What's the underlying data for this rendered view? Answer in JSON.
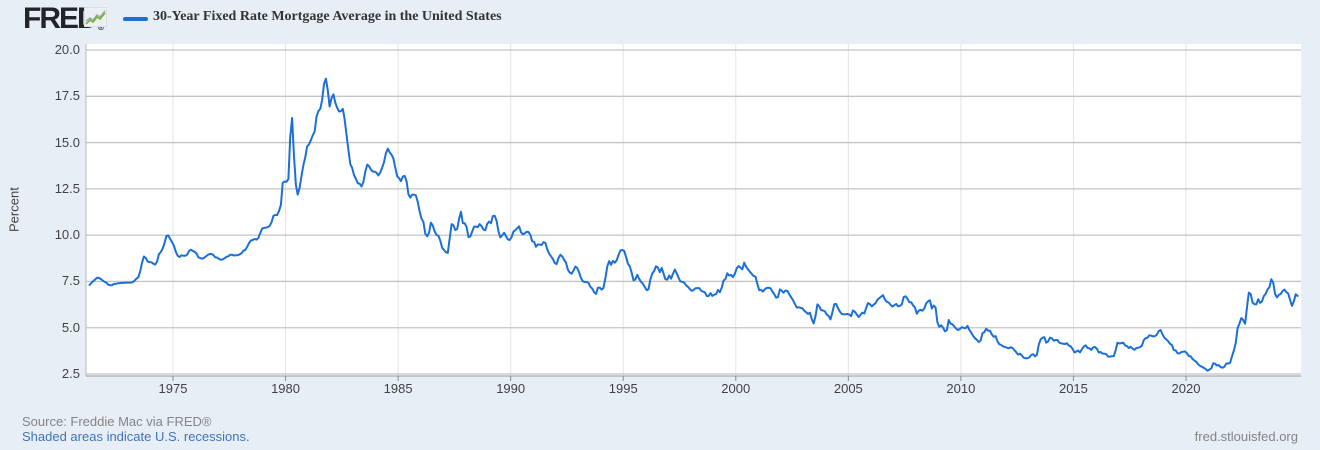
{
  "header": {
    "logo_text": "FRED",
    "logo_registered": "®",
    "series_title": "30-Year Fixed Rate Mortgage Average in the United States"
  },
  "footer": {
    "source": "Source: Freddie Mac via FRED®",
    "note": "Shaded areas indicate U.S. recessions.",
    "site": "fred.stlouisfed.org"
  },
  "colors": {
    "line": "#1b6fd8",
    "page_bg": "#e7eef6",
    "plot_bg": "#ffffff",
    "h_grid": "#c4c4c4",
    "v_grid": "#e4e4e4",
    "axis": "#aaaaaa",
    "tick_text": "#424242",
    "link": "#4273b8",
    "muted_text": "#848484",
    "logo_green": "#74b632"
  },
  "chart_data": {
    "type": "line",
    "title": "30-Year Fixed Rate Mortgage Average in the United States",
    "xlabel": "",
    "ylabel": "Percent",
    "ylim": [
      2.28,
      20.0
    ],
    "x_range_years": [
      1971.13,
      2025.1
    ],
    "grid": true,
    "legend_position": "top-left",
    "y_ticks": [
      2.5,
      5.0,
      7.5,
      10.0,
      12.5,
      15.0,
      17.5,
      20.0
    ],
    "y_tick_labels": [
      "2.5",
      "5.0",
      "7.5",
      "10.0",
      "12.5",
      "15.0",
      "17.5",
      "20.0"
    ],
    "x_ticks": [
      1975,
      1980,
      1985,
      1990,
      1995,
      2000,
      2005,
      2010,
      2015,
      2020
    ],
    "x_tick_labels": [
      "1975",
      "1980",
      "1985",
      "1990",
      "1995",
      "2000",
      "2005",
      "2010",
      "2015",
      "2020"
    ],
    "series": [
      {
        "name": "30-Year Fixed Rate Mortgage Average in the United States",
        "frequency": "monthly",
        "start_year": 1971,
        "start_month": 4,
        "values": [
          7.31,
          7.42,
          7.53,
          7.6,
          7.7,
          7.69,
          7.63,
          7.55,
          7.48,
          7.44,
          7.32,
          7.3,
          7.29,
          7.37,
          7.37,
          7.4,
          7.4,
          7.42,
          7.42,
          7.43,
          7.44,
          7.44,
          7.44,
          7.46,
          7.54,
          7.65,
          7.73,
          8.05,
          8.5,
          8.85,
          8.77,
          8.58,
          8.54,
          8.54,
          8.46,
          8.41,
          8.58,
          8.97,
          9.09,
          9.28,
          9.59,
          9.96,
          9.98,
          9.79,
          9.62,
          9.43,
          9.1,
          8.89,
          8.82,
          8.91,
          8.89,
          8.89,
          8.94,
          9.13,
          9.22,
          9.15,
          9.1,
          9.02,
          8.81,
          8.76,
          8.73,
          8.77,
          8.85,
          8.93,
          8.98,
          8.98,
          8.93,
          8.81,
          8.79,
          8.72,
          8.67,
          8.69,
          8.75,
          8.83,
          8.86,
          8.94,
          8.94,
          8.9,
          8.92,
          8.92,
          8.96,
          9.02,
          9.16,
          9.2,
          9.36,
          9.57,
          9.71,
          9.74,
          9.79,
          9.76,
          9.86,
          10.11,
          10.35,
          10.39,
          10.41,
          10.43,
          10.5,
          10.69,
          11.04,
          11.09,
          11.09,
          11.3,
          11.64,
          12.83,
          12.9,
          12.88,
          13.04,
          15.28,
          16.33,
          14.26,
          12.71,
          12.19,
          12.56,
          13.2,
          13.79,
          14.21,
          14.79,
          14.9,
          15.13,
          15.4,
          15.58,
          16.4,
          16.7,
          16.83,
          17.29,
          18.16,
          18.45,
          17.82,
          16.95,
          17.4,
          17.6,
          17.16,
          16.89,
          16.68,
          16.7,
          16.82,
          16.27,
          15.43,
          14.61,
          13.83,
          13.62,
          13.25,
          13.04,
          12.8,
          12.78,
          12.63,
          12.87,
          13.43,
          13.81,
          13.73,
          13.54,
          13.44,
          13.42,
          13.37,
          13.23,
          13.39,
          13.65,
          13.94,
          14.42,
          14.67,
          14.47,
          14.35,
          14.13,
          13.64,
          13.18,
          13.08,
          12.92,
          13.17,
          13.2,
          12.91,
          12.22,
          12.03,
          12.19,
          12.19,
          12.14,
          11.78,
          11.26,
          10.88,
          10.71,
          10.08,
          9.94,
          10.14,
          10.68,
          10.51,
          10.2,
          10.01,
          9.97,
          9.7,
          9.31,
          9.2,
          9.08,
          9.04,
          9.83,
          10.6,
          10.54,
          10.28,
          10.33,
          10.89,
          11.26,
          10.65,
          10.64,
          10.43,
          9.89,
          9.93,
          10.2,
          10.46,
          10.46,
          10.43,
          10.6,
          10.48,
          10.3,
          10.27,
          10.61,
          10.73,
          10.65,
          11.03,
          11.05,
          10.77,
          10.2,
          9.88,
          9.99,
          10.13,
          9.95,
          9.77,
          9.74,
          9.9,
          10.2,
          10.27,
          10.37,
          10.48,
          10.16,
          10.04,
          10.1,
          10.18,
          10.17,
          10.01,
          9.67,
          9.64,
          9.37,
          9.5,
          9.49,
          9.47,
          9.62,
          9.58,
          9.24,
          9.01,
          8.86,
          8.71,
          8.5,
          8.43,
          8.76,
          8.94,
          8.85,
          8.67,
          8.51,
          8.13,
          7.98,
          7.92,
          8.09,
          8.31,
          8.22,
          7.99,
          7.68,
          7.5,
          7.47,
          7.47,
          7.42,
          7.21,
          7.11,
          6.92,
          6.83,
          7.16,
          7.17,
          7.06,
          7.15,
          7.68,
          8.32,
          8.6,
          8.4,
          8.61,
          8.51,
          8.64,
          8.93,
          9.17,
          9.2,
          9.15,
          8.83,
          8.46,
          8.32,
          7.96,
          7.57,
          7.61,
          7.86,
          7.64,
          7.48,
          7.38,
          7.2,
          7.03,
          7.08,
          7.62,
          7.93,
          8.07,
          8.32,
          8.25,
          8.0,
          8.23,
          7.92,
          7.62,
          7.6,
          7.82,
          7.65,
          7.9,
          8.14,
          7.94,
          7.69,
          7.5,
          7.48,
          7.43,
          7.29,
          7.21,
          7.1,
          6.99,
          7.04,
          7.13,
          7.14,
          7.14,
          7.0,
          6.95,
          6.92,
          6.72,
          6.71,
          6.87,
          6.72,
          6.79,
          6.81,
          7.04,
          6.92,
          7.15,
          7.55,
          7.63,
          7.94,
          7.82,
          7.85,
          7.74,
          7.91,
          8.21,
          8.33,
          8.24,
          8.15,
          8.52,
          8.29,
          8.15,
          8.03,
          7.91,
          7.8,
          7.75,
          7.38,
          7.03,
          7.05,
          6.95,
          7.08,
          7.15,
          7.16,
          7.13,
          6.95,
          6.82,
          6.62,
          6.66,
          7.07,
          7.0,
          6.89,
          7.01,
          6.99,
          6.81,
          6.65,
          6.49,
          6.29,
          6.09,
          6.11,
          6.07,
          6.05,
          5.92,
          5.84,
          5.75,
          5.81,
          5.48,
          5.23,
          5.63,
          6.26,
          6.15,
          5.95,
          5.93,
          5.88,
          5.71,
          5.64,
          5.45,
          5.83,
          6.27,
          6.29,
          6.06,
          5.87,
          5.75,
          5.72,
          5.73,
          5.75,
          5.71,
          5.63,
          5.93,
          5.86,
          5.72,
          5.58,
          5.7,
          5.82,
          5.77,
          6.07,
          6.33,
          6.27,
          6.15,
          6.25,
          6.32,
          6.51,
          6.6,
          6.68,
          6.76,
          6.52,
          6.4,
          6.36,
          6.24,
          6.14,
          6.22,
          6.29,
          6.16,
          6.18,
          6.26,
          6.66,
          6.7,
          6.57,
          6.38,
          6.38,
          6.21,
          6.1,
          5.76,
          5.92,
          5.97,
          5.92,
          6.04,
          6.32,
          6.43,
          6.48,
          6.04,
          6.2,
          6.09,
          5.29,
          5.05,
          5.13,
          5.0,
          4.81,
          4.86,
          5.42,
          5.22,
          5.19,
          5.06,
          4.95,
          4.88,
          4.93,
          5.03,
          4.99,
          4.97,
          5.1,
          4.89,
          4.74,
          4.56,
          4.43,
          4.35,
          4.23,
          4.3,
          4.71,
          4.76,
          4.95,
          4.84,
          4.84,
          4.64,
          4.51,
          4.55,
          4.27,
          4.11,
          4.07,
          3.99,
          3.96,
          3.92,
          3.89,
          3.95,
          3.91,
          3.8,
          3.68,
          3.55,
          3.6,
          3.5,
          3.38,
          3.35,
          3.35,
          3.41,
          3.53,
          3.57,
          3.45,
          3.54,
          4.07,
          4.37,
          4.46,
          4.49,
          4.19,
          4.26,
          4.46,
          4.43,
          4.3,
          4.34,
          4.34,
          4.19,
          4.16,
          4.13,
          4.12,
          4.16,
          4.04,
          4.0,
          3.86,
          3.67,
          3.71,
          3.77,
          3.67,
          3.84,
          3.98,
          4.05,
          3.91,
          3.89,
          3.8,
          3.94,
          3.96,
          3.87,
          3.66,
          3.69,
          3.61,
          3.6,
          3.57,
          3.44,
          3.44,
          3.46,
          3.47,
          3.77,
          4.2,
          4.15,
          4.17,
          4.2,
          4.05,
          4.01,
          3.9,
          3.97,
          3.88,
          3.81,
          3.9,
          3.92,
          3.95,
          4.03,
          4.33,
          4.44,
          4.47,
          4.59,
          4.57,
          4.53,
          4.55,
          4.63,
          4.83,
          4.87,
          4.64,
          4.46,
          4.37,
          4.27,
          4.14,
          4.07,
          3.8,
          3.77,
          3.62,
          3.61,
          3.69,
          3.7,
          3.72,
          3.62,
          3.47,
          3.45,
          3.31,
          3.23,
          3.16,
          3.02,
          2.94,
          2.89,
          2.83,
          2.77,
          2.68,
          2.74,
          2.81,
          3.08,
          3.06,
          2.96,
          2.98,
          2.87,
          2.84,
          2.9,
          3.07,
          3.07,
          3.1,
          3.45,
          3.76,
          4.17,
          4.98,
          5.23,
          5.52,
          5.41,
          5.22,
          6.11,
          6.9,
          6.81,
          6.36,
          6.27,
          6.26,
          6.54,
          6.34,
          6.43,
          6.71,
          6.84,
          7.07,
          7.2,
          7.62,
          7.44,
          6.82,
          6.64,
          6.78,
          6.82,
          6.99,
          7.06,
          6.92,
          6.85,
          6.5,
          6.18,
          6.43,
          6.81,
          6.72
        ]
      }
    ]
  }
}
